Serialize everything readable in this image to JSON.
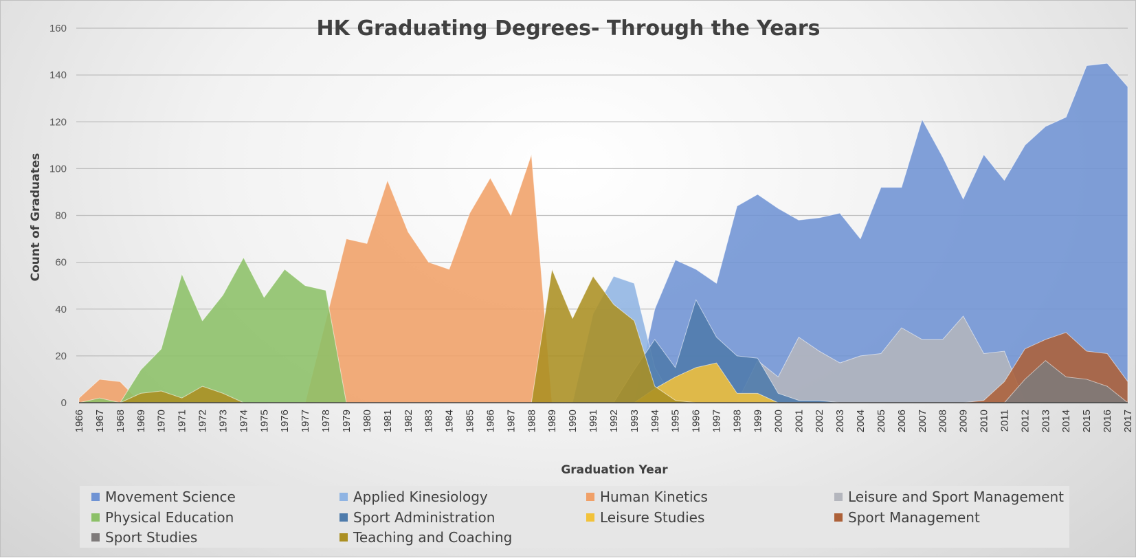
{
  "chart_data": {
    "type": "area",
    "title": "HK Graduating Degrees- Through the Years",
    "xlabel": "Graduation Year",
    "ylabel": "Count of Graduates",
    "ylim": [
      0,
      160
    ],
    "yticks": [
      0,
      20,
      40,
      60,
      80,
      100,
      120,
      140,
      160
    ],
    "grid": true,
    "legend_position": "bottom",
    "x": [
      1966,
      1967,
      1968,
      1969,
      1970,
      1971,
      1972,
      1973,
      1974,
      1975,
      1976,
      1977,
      1978,
      1979,
      1980,
      1981,
      1982,
      1983,
      1984,
      1985,
      1986,
      1987,
      1988,
      1989,
      1990,
      1991,
      1992,
      1993,
      1994,
      1995,
      1996,
      1997,
      1998,
      1999,
      2000,
      2001,
      2002,
      2003,
      2004,
      2005,
      2006,
      2007,
      2008,
      2009,
      2010,
      2011,
      2012,
      2013,
      2014,
      2015,
      2016,
      2017
    ],
    "series": [
      {
        "name": "Movement Science",
        "color": "#6f93d4",
        "values": [
          0,
          0,
          0,
          0,
          0,
          0,
          0,
          0,
          0,
          0,
          0,
          0,
          0,
          0,
          0,
          0,
          0,
          0,
          0,
          0,
          0,
          0,
          0,
          0,
          0,
          0,
          0,
          0,
          40,
          61,
          57,
          51,
          84,
          89,
          83,
          78,
          79,
          81,
          70,
          92,
          92,
          121,
          105,
          87,
          106,
          95,
          110,
          118,
          122,
          144,
          145,
          135
        ]
      },
      {
        "name": "Applied Kinesiology",
        "color": "#8fb4e3",
        "values": [
          0,
          0,
          0,
          0,
          0,
          0,
          0,
          0,
          0,
          0,
          0,
          0,
          0,
          0,
          0,
          0,
          0,
          0,
          0,
          0,
          0,
          0,
          0,
          0,
          0,
          38,
          54,
          51,
          15,
          0,
          0,
          0,
          0,
          0,
          0,
          0,
          0,
          0,
          0,
          0,
          0,
          0,
          0,
          0,
          0,
          0,
          0,
          0,
          0,
          0,
          0,
          0
        ]
      },
      {
        "name": "Human Kinetics",
        "color": "#f0a068",
        "values": [
          2,
          10,
          9,
          0,
          0,
          0,
          0,
          0,
          0,
          0,
          0,
          0,
          35,
          70,
          68,
          95,
          73,
          60,
          57,
          81,
          96,
          80,
          106,
          0,
          0,
          0,
          0,
          0,
          0,
          0,
          0,
          0,
          0,
          0,
          0,
          0,
          0,
          0,
          0,
          0,
          0,
          0,
          0,
          0,
          0,
          0,
          0,
          0,
          0,
          0,
          0,
          0
        ]
      },
      {
        "name": "Leisure and Sport Management",
        "color": "#b4b6bd",
        "values": [
          0,
          0,
          0,
          0,
          0,
          0,
          0,
          0,
          0,
          0,
          0,
          0,
          0,
          0,
          0,
          0,
          0,
          0,
          0,
          0,
          0,
          0,
          0,
          0,
          0,
          0,
          0,
          0,
          0,
          0,
          0,
          0,
          0,
          18,
          11,
          28,
          22,
          17,
          20,
          21,
          32,
          27,
          27,
          37,
          21,
          22,
          0,
          0,
          0,
          0,
          0,
          0
        ]
      },
      {
        "name": "Physical Education",
        "color": "#8cc068",
        "values": [
          0,
          2,
          0,
          14,
          23,
          55,
          35,
          46,
          62,
          45,
          57,
          50,
          48,
          0,
          0,
          0,
          0,
          0,
          0,
          0,
          0,
          0,
          0,
          0,
          0,
          0,
          0,
          0,
          0,
          0,
          0,
          0,
          0,
          0,
          0,
          0,
          0,
          0,
          0,
          0,
          0,
          0,
          0,
          0,
          0,
          0,
          0,
          0,
          0,
          0,
          0,
          0
        ]
      },
      {
        "name": "Sport Administration",
        "color": "#4e7bab",
        "values": [
          0,
          0,
          0,
          0,
          0,
          0,
          0,
          0,
          0,
          0,
          0,
          0,
          0,
          0,
          0,
          0,
          0,
          0,
          0,
          0,
          0,
          0,
          0,
          0,
          0,
          0,
          0,
          14,
          27,
          15,
          44,
          28,
          20,
          19,
          4,
          1,
          1,
          0,
          0,
          0,
          0,
          0,
          0,
          0,
          0,
          0,
          0,
          0,
          0,
          0,
          0,
          0
        ]
      },
      {
        "name": "Leisure Studies",
        "color": "#f2c23a",
        "values": [
          0,
          0,
          0,
          0,
          0,
          0,
          0,
          0,
          0,
          0,
          0,
          0,
          0,
          0,
          0,
          0,
          0,
          0,
          0,
          0,
          0,
          0,
          0,
          0,
          0,
          0,
          0,
          0,
          6,
          11,
          15,
          17,
          4,
          4,
          0,
          0,
          0,
          0,
          0,
          0,
          0,
          0,
          0,
          0,
          0,
          0,
          0,
          0,
          0,
          0,
          0,
          0
        ]
      },
      {
        "name": "Sport Management",
        "color": "#ad6139",
        "values": [
          0,
          0,
          0,
          0,
          0,
          0,
          0,
          0,
          0,
          0,
          0,
          0,
          0,
          0,
          0,
          0,
          0,
          0,
          0,
          0,
          0,
          0,
          0,
          0,
          0,
          0,
          0,
          0,
          0,
          0,
          0,
          0,
          0,
          0,
          0,
          0,
          0,
          0,
          0,
          0,
          0,
          0,
          0,
          0,
          1,
          9,
          23,
          27,
          30,
          22,
          21,
          9
        ]
      },
      {
        "name": "Sport Studies",
        "color": "#7e7a7a",
        "values": [
          0,
          0,
          0,
          0,
          0,
          0,
          0,
          0,
          0,
          0,
          0,
          0,
          0,
          0,
          0,
          0,
          0,
          0,
          0,
          0,
          0,
          0,
          0,
          0,
          0,
          0,
          0,
          0,
          0,
          0,
          0,
          0,
          0,
          0,
          0,
          0,
          0,
          0,
          0,
          0,
          0,
          0,
          0,
          0,
          0,
          0,
          10,
          18,
          11,
          10,
          7,
          0
        ]
      },
      {
        "name": "Teaching and Coaching",
        "color": "#ab8f22",
        "values": [
          0,
          0,
          0,
          4,
          5,
          2,
          7,
          4,
          0,
          0,
          0,
          0,
          0,
          0,
          0,
          0,
          0,
          0,
          0,
          0,
          0,
          0,
          0,
          57,
          36,
          54,
          42,
          35,
          7,
          1,
          0,
          0,
          0,
          0,
          0,
          0,
          0,
          0,
          0,
          0,
          0,
          0,
          0,
          0,
          0,
          0,
          0,
          0,
          0,
          0,
          0,
          0
        ]
      }
    ]
  }
}
